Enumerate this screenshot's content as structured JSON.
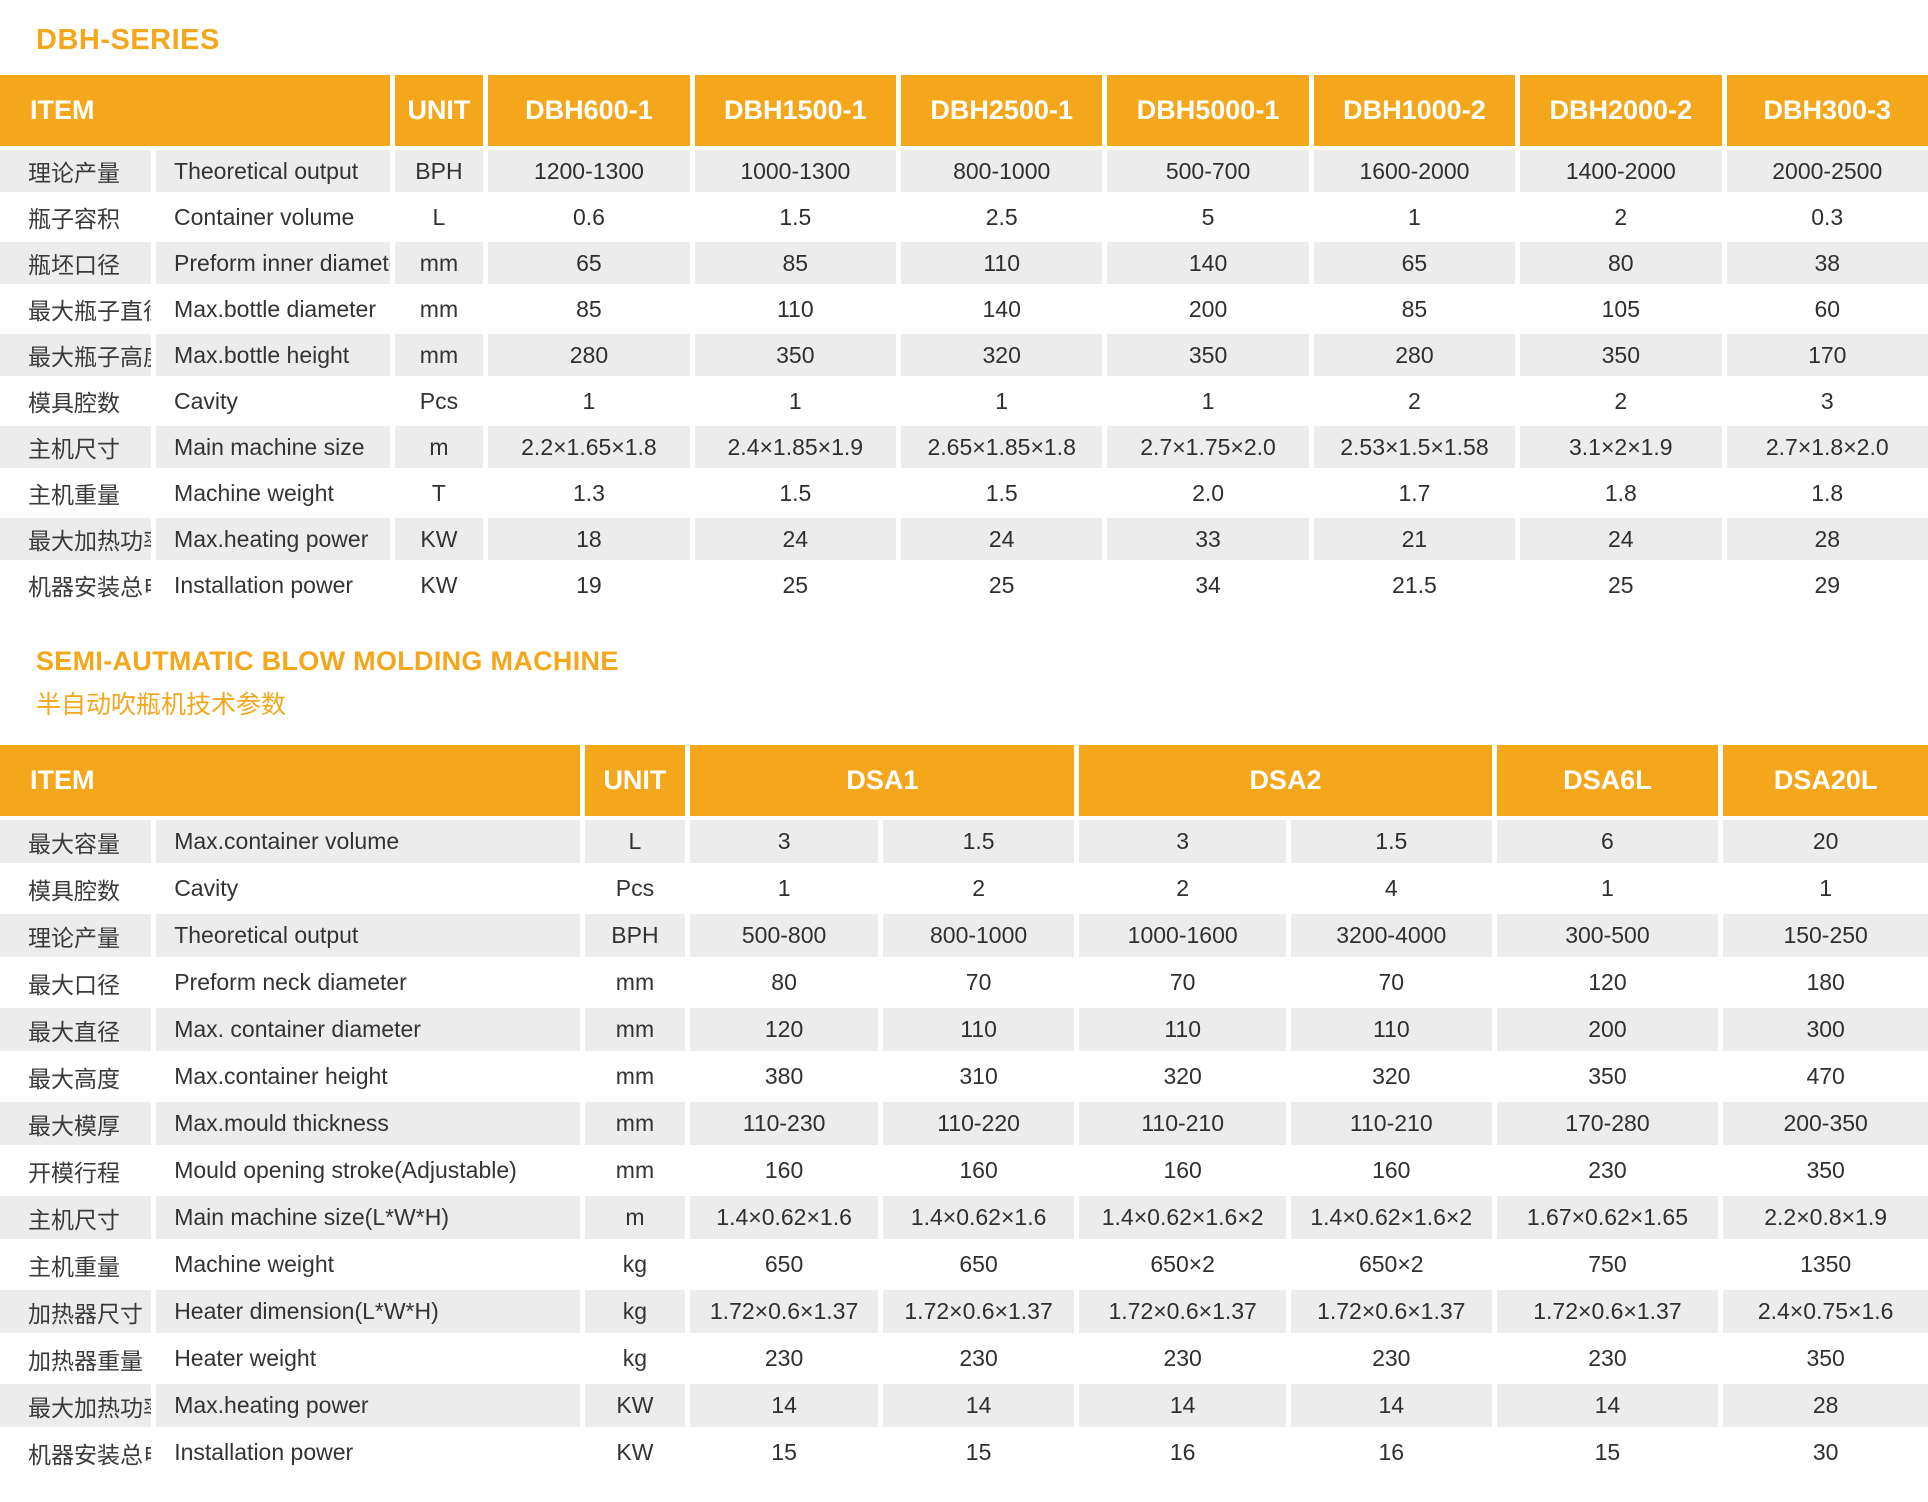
{
  "colors": {
    "accent": "#F4A71B",
    "row_alt": "#EDECEC",
    "header_text": "#FFFFFF",
    "body_text": "#2F2F2F"
  },
  "table1": {
    "title": "DBH-SERIES",
    "header": {
      "item": "ITEM",
      "unit": "UNIT",
      "models": [
        {
          "label": "DBH600-1",
          "span": 1
        },
        {
          "label": "DBH1500-1",
          "span": 1
        },
        {
          "label": "DBH2500-1",
          "span": 1
        },
        {
          "label": "DBH5000-1",
          "span": 1
        },
        {
          "label": "DBH1000-2",
          "span": 1
        },
        {
          "label": "DBH2000-2",
          "span": 1
        },
        {
          "label": "DBH300-3",
          "span": 1
        }
      ]
    },
    "rows": [
      {
        "cn": "理论产量",
        "en": "Theoretical  output",
        "unit": "BPH",
        "values": [
          "1200-1300",
          "1000-1300",
          "800-1000",
          "500-700",
          "1600-2000",
          "1400-2000",
          "2000-2500"
        ]
      },
      {
        "cn": "瓶子容积",
        "en": "Container volume",
        "unit": "L",
        "values": [
          "0.6",
          "1.5",
          "2.5",
          "5",
          "1",
          "2",
          "0.3"
        ]
      },
      {
        "cn": "瓶坯口径",
        "en": "Preform inner diameter",
        "unit": "mm",
        "values": [
          "65",
          "85",
          "110",
          "140",
          "65",
          "80",
          "38"
        ]
      },
      {
        "cn": "最大瓶子直径",
        "en": "Max.bottle diameter",
        "unit": "mm",
        "values": [
          "85",
          "110",
          "140",
          "200",
          "85",
          "105",
          "60"
        ]
      },
      {
        "cn": "最大瓶子高度",
        "en": "Max.bottle height",
        "unit": "mm",
        "values": [
          "280",
          "350",
          "320",
          "350",
          "280",
          "350",
          "170"
        ]
      },
      {
        "cn": "模具腔数",
        "en": "Cavity",
        "unit": "Pcs",
        "values": [
          "1",
          "1",
          "1",
          "1",
          "2",
          "2",
          "3"
        ]
      },
      {
        "cn": "主机尺寸",
        "en": "Main machine size",
        "unit": "m",
        "values": [
          "2.2×1.65×1.8",
          "2.4×1.85×1.9",
          "2.65×1.85×1.8",
          "2.7×1.75×2.0",
          "2.53×1.5×1.58",
          "3.1×2×1.9",
          "2.7×1.8×2.0"
        ]
      },
      {
        "cn": "主机重量",
        "en": "Machine weight",
        "unit": "T",
        "values": [
          "1.3",
          "1.5",
          "1.5",
          "2.0",
          "1.7",
          "1.8",
          "1.8"
        ]
      },
      {
        "cn": "最大加热功率",
        "en": "Max.heating power",
        "unit": "KW",
        "values": [
          "18",
          "24",
          "24",
          "33",
          "21",
          "24",
          "28"
        ]
      },
      {
        "cn": "机器安装总电力",
        "en": "Installation power",
        "unit": "KW",
        "values": [
          "19",
          "25",
          "25",
          "34",
          "21.5",
          "25",
          "29"
        ]
      }
    ]
  },
  "table2": {
    "title": "SEMI-AUTMATIC BLOW MOLDING MACHINE",
    "subtitle": "半自动吹瓶机技术参数",
    "header": {
      "item": "ITEM",
      "unit": "UNIT",
      "models": [
        {
          "label": "DSA1",
          "span": 2
        },
        {
          "label": "DSA2",
          "span": 2
        },
        {
          "label": "DSA6L",
          "span": 1
        },
        {
          "label": "DSA20L",
          "span": 1
        }
      ]
    },
    "rows": [
      {
        "cn": "最大容量",
        "en": "Max.container volume",
        "unit": "L",
        "values": [
          "3",
          "1.5",
          "3",
          "1.5",
          "6",
          "20"
        ]
      },
      {
        "cn": "模具腔数",
        "en": "Cavity",
        "unit": "Pcs",
        "values": [
          "1",
          "2",
          "2",
          "4",
          "1",
          "1"
        ]
      },
      {
        "cn": "理论产量",
        "en": "Theoretical  output",
        "unit": "BPH",
        "values": [
          "500-800",
          "800-1000",
          "1000-1600",
          "3200-4000",
          "300-500",
          "150-250"
        ]
      },
      {
        "cn": "最大口径",
        "en": "Preform neck diameter",
        "unit": "mm",
        "values": [
          "80",
          "70",
          "70",
          "70",
          "120",
          "180"
        ]
      },
      {
        "cn": "最大直径",
        "en": "Max. container  diameter",
        "unit": "mm",
        "values": [
          "120",
          "110",
          "110",
          "110",
          "200",
          "300"
        ]
      },
      {
        "cn": "最大高度",
        "en": "Max.container height",
        "unit": "mm",
        "values": [
          "380",
          "310",
          "320",
          "320",
          "350",
          "470"
        ]
      },
      {
        "cn": "最大模厚",
        "en": "Max.mould thickness",
        "unit": "mm",
        "values": [
          "110-230",
          "110-220",
          "110-210",
          "110-210",
          "170-280",
          "200-350"
        ]
      },
      {
        "cn": "开模行程",
        "en": "Mould opening stroke(Adjustable)",
        "unit": "mm",
        "values": [
          "160",
          "160",
          "160",
          "160",
          "230",
          "350"
        ]
      },
      {
        "cn": "主机尺寸",
        "en": "Main machine size(L*W*H)",
        "unit": "m",
        "values": [
          "1.4×0.62×1.6",
          "1.4×0.62×1.6",
          "1.4×0.62×1.6×2",
          "1.4×0.62×1.6×2",
          "1.67×0.62×1.65",
          "2.2×0.8×1.9"
        ]
      },
      {
        "cn": "主机重量",
        "en": "Machine weight",
        "unit": "kg",
        "values": [
          "650",
          "650",
          "650×2",
          "650×2",
          "750",
          "1350"
        ]
      },
      {
        "cn": "加热器尺寸",
        "en": "Heater dimension(L*W*H)",
        "unit": "kg",
        "values": [
          "1.72×0.6×1.37",
          "1.72×0.6×1.37",
          "1.72×0.6×1.37",
          "1.72×0.6×1.37",
          "1.72×0.6×1.37",
          "2.4×0.75×1.6"
        ]
      },
      {
        "cn": "加热器重量",
        "en": "Heater weight",
        "unit": "kg",
        "values": [
          "230",
          "230",
          "230",
          "230",
          "230",
          "350"
        ]
      },
      {
        "cn": "最大加热功率",
        "en": "Max.heating power",
        "unit": "KW",
        "values": [
          "14",
          "14",
          "14",
          "14",
          "14",
          "28"
        ]
      },
      {
        "cn": "机器安装总电力",
        "en": "Installation power",
        "unit": "KW",
        "values": [
          "15",
          "15",
          "16",
          "16",
          "15",
          "30"
        ]
      }
    ]
  }
}
